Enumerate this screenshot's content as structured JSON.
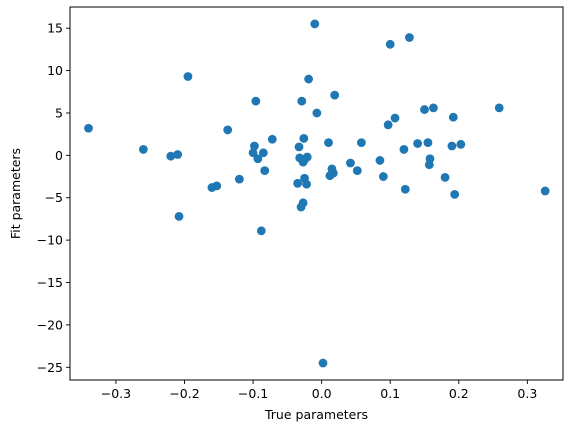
{
  "chart_data": {
    "type": "scatter",
    "title": "",
    "xlabel": "True parameters",
    "ylabel": "Fit parameters",
    "xlim": [
      -0.367,
      0.352
    ],
    "ylim": [
      -26.5,
      17.5
    ],
    "xticks": [
      -0.3,
      -0.2,
      -0.1,
      0.0,
      0.1,
      0.2,
      0.3
    ],
    "xtick_labels": [
      "−0.3",
      "−0.2",
      "−0.1",
      "0.0",
      "0.1",
      "0.2",
      "0.3"
    ],
    "yticks": [
      -25,
      -20,
      -15,
      -10,
      -5,
      0,
      5,
      10,
      15
    ],
    "ytick_labels": [
      "−25",
      "−20",
      "−15",
      "−10",
      "−5",
      "0",
      "5",
      "10",
      "15"
    ],
    "grid": false,
    "legend": "none",
    "marker_color": "#1f77b4",
    "points": [
      {
        "x": -0.34,
        "y": 3.2
      },
      {
        "x": -0.26,
        "y": 0.7
      },
      {
        "x": -0.22,
        "y": -0.1
      },
      {
        "x": -0.21,
        "y": 0.1
      },
      {
        "x": -0.208,
        "y": -7.2
      },
      {
        "x": -0.195,
        "y": 9.3
      },
      {
        "x": -0.16,
        "y": -3.8
      },
      {
        "x": -0.153,
        "y": -3.6
      },
      {
        "x": -0.137,
        "y": 3.0
      },
      {
        "x": -0.12,
        "y": -2.8
      },
      {
        "x": -0.1,
        "y": 0.3
      },
      {
        "x": -0.098,
        "y": 1.1
      },
      {
        "x": -0.096,
        "y": 6.4
      },
      {
        "x": -0.093,
        "y": -0.4
      },
      {
        "x": -0.088,
        "y": -8.9
      },
      {
        "x": -0.085,
        "y": 0.3
      },
      {
        "x": -0.083,
        "y": -1.8
      },
      {
        "x": -0.072,
        "y": 1.9
      },
      {
        "x": -0.035,
        "y": -3.3
      },
      {
        "x": -0.033,
        "y": 1.0
      },
      {
        "x": -0.032,
        "y": -0.3
      },
      {
        "x": -0.03,
        "y": -6.1
      },
      {
        "x": -0.029,
        "y": 6.4
      },
      {
        "x": -0.027,
        "y": -5.6
      },
      {
        "x": -0.027,
        "y": -0.8
      },
      {
        "x": -0.026,
        "y": 2.0
      },
      {
        "x": -0.025,
        "y": -0.5
      },
      {
        "x": -0.025,
        "y": -2.7
      },
      {
        "x": -0.022,
        "y": -3.4
      },
      {
        "x": -0.021,
        "y": -0.2
      },
      {
        "x": -0.019,
        "y": 9.0
      },
      {
        "x": -0.01,
        "y": 15.5
      },
      {
        "x": -0.007,
        "y": 5.0
      },
      {
        "x": 0.002,
        "y": -24.5
      },
      {
        "x": 0.01,
        "y": 1.5
      },
      {
        "x": 0.012,
        "y": -2.4
      },
      {
        "x": 0.015,
        "y": -1.6
      },
      {
        "x": 0.017,
        "y": -2.1
      },
      {
        "x": 0.019,
        "y": 7.1
      },
      {
        "x": 0.042,
        "y": -0.9
      },
      {
        "x": 0.052,
        "y": -1.8
      },
      {
        "x": 0.058,
        "y": 1.5
      },
      {
        "x": 0.085,
        "y": -0.6
      },
      {
        "x": 0.09,
        "y": -2.5
      },
      {
        "x": 0.097,
        "y": 3.6
      },
      {
        "x": 0.1,
        "y": 13.1
      },
      {
        "x": 0.107,
        "y": 4.4
      },
      {
        "x": 0.12,
        "y": 0.7
      },
      {
        "x": 0.122,
        "y": -4.0
      },
      {
        "x": 0.128,
        "y": 13.9
      },
      {
        "x": 0.14,
        "y": 1.4
      },
      {
        "x": 0.15,
        "y": 5.4
      },
      {
        "x": 0.155,
        "y": 1.5
      },
      {
        "x": 0.157,
        "y": -1.1
      },
      {
        "x": 0.158,
        "y": -0.4
      },
      {
        "x": 0.163,
        "y": 5.6
      },
      {
        "x": 0.18,
        "y": -2.6
      },
      {
        "x": 0.19,
        "y": 1.1
      },
      {
        "x": 0.192,
        "y": 4.5
      },
      {
        "x": 0.194,
        "y": -4.6
      },
      {
        "x": 0.203,
        "y": 1.3
      },
      {
        "x": 0.259,
        "y": 5.6
      },
      {
        "x": 0.326,
        "y": -4.2
      }
    ]
  }
}
